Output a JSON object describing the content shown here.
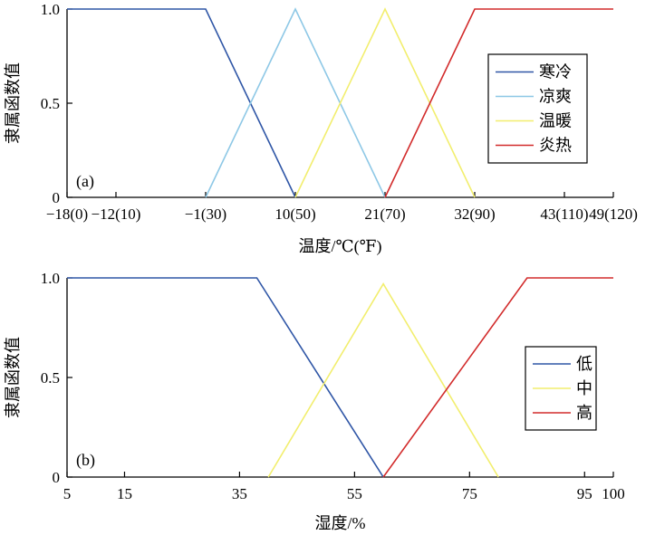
{
  "colors": {
    "blue": "#2f56a6",
    "lightblue": "#8ec8e6",
    "yellow": "#f2ee6e",
    "red": "#d22b2b",
    "axis": "#000000"
  },
  "chart_data": [
    {
      "type": "line",
      "panel_label": "(a)",
      "xlabel": "温度/℃(℉)",
      "ylabel": "隶属函数值",
      "xlim": [
        -18,
        49
      ],
      "ylim": [
        0,
        1
      ],
      "x_ticks": [
        {
          "value": -18,
          "label": "−18(0)"
        },
        {
          "value": -12,
          "label": "−12(10)"
        },
        {
          "value": -1,
          "label": "−1(30)"
        },
        {
          "value": 10,
          "label": "10(50)"
        },
        {
          "value": 21,
          "label": "21(70)"
        },
        {
          "value": 32,
          "label": "32(90)"
        },
        {
          "value": 43,
          "label": "43(110)"
        },
        {
          "value": 49,
          "label": "49(120)"
        }
      ],
      "y_ticks": [
        {
          "value": 0,
          "label": "0"
        },
        {
          "value": 0.5,
          "label": "0.5"
        },
        {
          "value": 1,
          "label": "1.0"
        }
      ],
      "legend_position": "right",
      "series": [
        {
          "name": "寒冷",
          "color": "#2f56a6",
          "points": [
            [
              -18,
              1
            ],
            [
              -1,
              1
            ],
            [
              10,
              0
            ]
          ]
        },
        {
          "name": "凉爽",
          "color": "#8ec8e6",
          "points": [
            [
              -1,
              0
            ],
            [
              10,
              1
            ],
            [
              21,
              0
            ]
          ]
        },
        {
          "name": "温暖",
          "color": "#f2ee6e",
          "points": [
            [
              10,
              0
            ],
            [
              21,
              1
            ],
            [
              32,
              0
            ]
          ]
        },
        {
          "name": "炎热",
          "color": "#d22b2b",
          "points": [
            [
              21,
              0
            ],
            [
              32,
              1
            ],
            [
              49,
              1
            ]
          ]
        }
      ]
    },
    {
      "type": "line",
      "panel_label": "(b)",
      "xlabel": "湿度/%",
      "ylabel": "隶属函数值",
      "xlim": [
        5,
        100
      ],
      "ylim": [
        0,
        1
      ],
      "x_ticks": [
        {
          "value": 5,
          "label": "5"
        },
        {
          "value": 15,
          "label": "15"
        },
        {
          "value": 35,
          "label": "35"
        },
        {
          "value": 55,
          "label": "55"
        },
        {
          "value": 75,
          "label": "75"
        },
        {
          "value": 95,
          "label": "95"
        },
        {
          "value": 100,
          "label": "100"
        }
      ],
      "y_ticks": [
        {
          "value": 0,
          "label": "0"
        },
        {
          "value": 0.5,
          "label": "0.5"
        },
        {
          "value": 1,
          "label": "1.0"
        }
      ],
      "legend_position": "right",
      "series": [
        {
          "name": "低",
          "color": "#2f56a6",
          "points": [
            [
              5,
              1
            ],
            [
              38,
              1
            ],
            [
              60,
              0
            ]
          ]
        },
        {
          "name": "中",
          "color": "#f2ee6e",
          "points": [
            [
              40,
              0
            ],
            [
              60,
              0.97
            ],
            [
              80,
              0
            ]
          ]
        },
        {
          "name": "高",
          "color": "#d22b2b",
          "points": [
            [
              60,
              0
            ],
            [
              85,
              1
            ],
            [
              100,
              1
            ]
          ]
        }
      ]
    }
  ]
}
